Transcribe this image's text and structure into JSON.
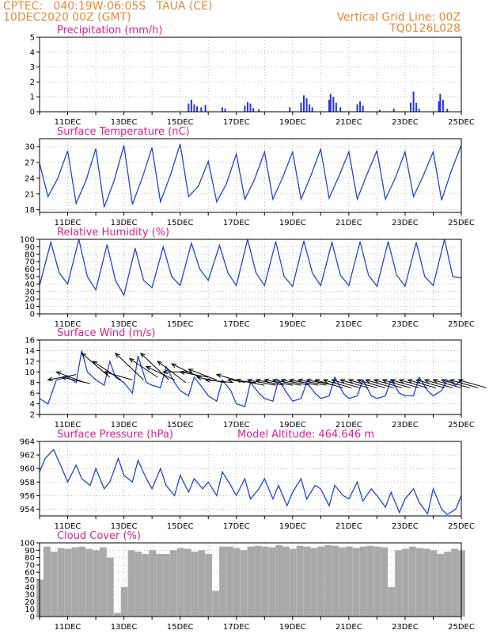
{
  "header": {
    "line1": "CPTEC:   040:19W-06:05S   TAUA (CE)",
    "line2": "10DEC2020 00Z (GMT)",
    "right1": "Vertical Grid Line: 00Z",
    "right2": "TQ0126L028"
  },
  "chart_data": [
    {
      "type": "bar",
      "title": "Precipitation (mm/h)",
      "ylim": [
        0,
        5
      ],
      "yticks": [
        "0",
        "1",
        "2",
        "3",
        "4",
        "5"
      ],
      "xtick_labels": [
        "11DEC",
        "13DEC",
        "15DEC",
        "17DEC",
        "19DEC",
        "21DEC",
        "23DEC",
        "25DEC"
      ],
      "bar_color": "#2233ee",
      "bars": [
        [
          5.3,
          0.55
        ],
        [
          5.4,
          0.8
        ],
        [
          5.5,
          0.5
        ],
        [
          5.6,
          0.35
        ],
        [
          5.75,
          0.3
        ],
        [
          5.9,
          0.45
        ],
        [
          6.5,
          0.3
        ],
        [
          6.6,
          0.2
        ],
        [
          7.3,
          0.4
        ],
        [
          7.4,
          0.65
        ],
        [
          7.5,
          0.55
        ],
        [
          7.6,
          0.25
        ],
        [
          7.8,
          0.15
        ],
        [
          8.9,
          0.3
        ],
        [
          9.3,
          0.6
        ],
        [
          9.4,
          1.1
        ],
        [
          9.5,
          0.9
        ],
        [
          9.6,
          0.5
        ],
        [
          9.7,
          0.3
        ],
        [
          10.3,
          0.8
        ],
        [
          10.35,
          1.2
        ],
        [
          10.45,
          1.0
        ],
        [
          10.55,
          0.6
        ],
        [
          10.7,
          0.3
        ],
        [
          11.3,
          0.5
        ],
        [
          11.4,
          0.7
        ],
        [
          11.5,
          0.4
        ],
        [
          12.1,
          0.12
        ],
        [
          12.6,
          0.2
        ],
        [
          13.2,
          0.6
        ],
        [
          13.3,
          1.35
        ],
        [
          13.4,
          0.6
        ],
        [
          13.5,
          0.2
        ],
        [
          14.2,
          0.7
        ],
        [
          14.25,
          1.2
        ],
        [
          14.35,
          0.8
        ],
        [
          14.5,
          0.2
        ]
      ]
    },
    {
      "type": "line",
      "title": "Surface Temperature (nC)",
      "ylim": [
        17.5,
        31.5
      ],
      "yticks": [
        "18",
        "21",
        "24",
        "27",
        "30"
      ],
      "ytick_values": [
        18,
        21,
        24,
        27,
        30
      ],
      "xtick_labels": [
        "11DEC",
        "13DEC",
        "15DEC",
        "17DEC",
        "19DEC",
        "21DEC",
        "23DEC",
        "25DEC"
      ],
      "line_color": "#2244dd",
      "x": [
        0,
        0.3,
        0.65,
        1.0,
        1.3,
        1.65,
        2.0,
        2.3,
        2.65,
        3.0,
        3.3,
        3.65,
        4.0,
        4.3,
        4.65,
        5.0,
        5.3,
        5.65,
        6.0,
        6.3,
        6.65,
        7.0,
        7.3,
        7.65,
        8.0,
        8.3,
        8.65,
        9.0,
        9.3,
        9.65,
        10.0,
        10.3,
        10.65,
        11.0,
        11.3,
        11.65,
        12.0,
        12.3,
        12.65,
        13.0,
        13.3,
        13.65,
        14.0,
        14.3,
        14.65,
        15.0
      ],
      "y": [
        26.8,
        20.5,
        24,
        29.2,
        19.2,
        23.5,
        29.6,
        18.5,
        23.5,
        30.2,
        19,
        24,
        29.8,
        19.5,
        24.5,
        30.5,
        20.5,
        22.5,
        27.2,
        19.5,
        23,
        28.6,
        20,
        23.8,
        29,
        20,
        24.2,
        29,
        20,
        24.5,
        29.5,
        20.2,
        24.4,
        29,
        20,
        24.8,
        29.2,
        20,
        24,
        29,
        20.5,
        24.5,
        29,
        19.8,
        25.5,
        30.3
      ]
    },
    {
      "type": "line",
      "title": "Relative Humidity (%)",
      "ylim": [
        0,
        100
      ],
      "yticks": [
        "0",
        "10",
        "20",
        "30",
        "40",
        "50",
        "60",
        "70",
        "80",
        "90",
        "100"
      ],
      "ytick_values": [
        0,
        10,
        20,
        30,
        40,
        50,
        60,
        70,
        80,
        90,
        100
      ],
      "xtick_labels": [
        "11DEC",
        "13DEC",
        "15DEC",
        "17DEC",
        "19DEC",
        "21DEC",
        "23DEC",
        "25DEC"
      ],
      "line_color": "#2244dd",
      "x": [
        0,
        0.4,
        0.7,
        1.0,
        1.4,
        1.7,
        2.0,
        2.4,
        2.7,
        3.0,
        3.4,
        3.7,
        4.0,
        4.4,
        4.7,
        5.0,
        5.4,
        5.7,
        6.0,
        6.4,
        6.7,
        7.0,
        7.4,
        7.7,
        8.0,
        8.4,
        8.7,
        9.0,
        9.4,
        9.7,
        10.0,
        10.4,
        10.7,
        11.0,
        11.4,
        11.7,
        12.0,
        12.4,
        12.7,
        13.0,
        13.4,
        13.7,
        14.0,
        14.4,
        14.7,
        15.0
      ],
      "y": [
        38,
        96,
        55,
        40,
        100,
        50,
        32,
        93,
        45,
        25,
        88,
        45,
        35,
        90,
        50,
        38,
        95,
        60,
        45,
        92,
        55,
        38,
        100,
        55,
        38,
        97,
        50,
        37,
        98,
        55,
        38,
        96,
        52,
        38,
        97,
        52,
        37,
        97,
        52,
        37,
        96,
        50,
        38,
        100,
        50,
        48
      ]
    },
    {
      "type": "line",
      "title": "Surface Wind (m/s)",
      "ylim": [
        2,
        16
      ],
      "yticks": [
        "2",
        "4",
        "6",
        "8",
        "10",
        "12",
        "14",
        "16"
      ],
      "ytick_values": [
        2,
        4,
        6,
        8,
        10,
        12,
        14,
        16
      ],
      "xtick_labels": [
        "11DEC",
        "13DEC",
        "15DEC",
        "17DEC",
        "19DEC",
        "21DEC",
        "23DEC",
        "25DEC"
      ],
      "line_color": "#2244dd",
      "x": [
        0,
        0.3,
        0.6,
        1.0,
        1.3,
        1.5,
        1.7,
        2.0,
        2.3,
        2.5,
        2.7,
        3.0,
        3.3,
        3.5,
        3.8,
        4.0,
        4.3,
        4.5,
        4.8,
        5.0,
        5.3,
        5.5,
        5.8,
        6.0,
        6.3,
        6.5,
        6.8,
        7.0,
        7.3,
        7.5,
        7.8,
        8.0,
        8.3,
        8.5,
        8.8,
        9.0,
        9.3,
        9.5,
        9.8,
        10.0,
        10.3,
        10.5,
        10.8,
        11.0,
        11.3,
        11.5,
        11.8,
        12.0,
        12.3,
        12.5,
        12.8,
        13.0,
        13.3,
        13.5,
        13.8,
        14.0,
        14.3,
        14.5,
        14.8,
        15.0
      ],
      "y": [
        5,
        4,
        8.5,
        9,
        8,
        14,
        10,
        8.5,
        7.5,
        12,
        9,
        8,
        6,
        13,
        8,
        7.5,
        7,
        11,
        8,
        6.5,
        5.5,
        9,
        7,
        5.5,
        4.5,
        8.5,
        6.5,
        4,
        3.5,
        8,
        6,
        5,
        4.5,
        8.5,
        6,
        4.5,
        5,
        8,
        6,
        5,
        5.5,
        9,
        6,
        5,
        5.5,
        8.5,
        5.5,
        5,
        5.5,
        8.5,
        6,
        5.5,
        5.5,
        9,
        6.5,
        5.5,
        6.5,
        8.5,
        7.5,
        8.5
      ],
      "arrow_color": "#000000",
      "vectors": [
        [
          0.3,
          8.5,
          9.5
        ],
        [
          0.6,
          10,
          8.0
        ],
        [
          0.8,
          9,
          7.8
        ],
        [
          1.5,
          13.5,
          9.0
        ],
        [
          1.9,
          12,
          8.5
        ],
        [
          2.3,
          10,
          8.5
        ],
        [
          2.7,
          13.5,
          8.5
        ],
        [
          3.2,
          12.5,
          9.0
        ],
        [
          3.6,
          13.5,
          8.5
        ],
        [
          3.8,
          11,
          8.5
        ],
        [
          4.2,
          12,
          8.0
        ],
        [
          4.4,
          10,
          10.0
        ],
        [
          4.7,
          11.5,
          9.0
        ],
        [
          5.0,
          10,
          9.0
        ],
        [
          5.3,
          10.5,
          8.5
        ],
        [
          5.6,
          9,
          8.0
        ],
        [
          5.9,
          8.5,
          8.0
        ],
        [
          6.3,
          9.5,
          8.0
        ],
        [
          6.7,
          8.5,
          8.0
        ],
        [
          7.0,
          8.5,
          7.5
        ],
        [
          7.4,
          8.5,
          7.5
        ],
        [
          7.7,
          8.5,
          7.5
        ],
        [
          8.0,
          8.5,
          7.5
        ],
        [
          8.3,
          8.5,
          7.5
        ],
        [
          8.6,
          8.5,
          7.5
        ],
        [
          8.9,
          8.5,
          7.5
        ],
        [
          9.2,
          8.5,
          7.5
        ],
        [
          9.5,
          8.5,
          7.5
        ],
        [
          9.8,
          8.5,
          7.0
        ],
        [
          10.1,
          8.5,
          7.0
        ],
        [
          10.4,
          8.5,
          7.0
        ],
        [
          10.7,
          8.5,
          7.0
        ],
        [
          11.0,
          8.5,
          7.0
        ],
        [
          11.3,
          8.5,
          7.0
        ],
        [
          11.6,
          8.5,
          7.0
        ],
        [
          11.9,
          8.5,
          7.0
        ],
        [
          12.2,
          8.5,
          7.0
        ],
        [
          12.5,
          8.5,
          7.0
        ],
        [
          12.8,
          8.5,
          7.0
        ],
        [
          13.1,
          8.5,
          7.0
        ],
        [
          13.4,
          8.5,
          7.0
        ],
        [
          13.7,
          8.5,
          7.0
        ],
        [
          14.0,
          8.5,
          7.0
        ],
        [
          14.3,
          8.5,
          7.0
        ],
        [
          14.6,
          8.5,
          7.0
        ],
        [
          14.9,
          8.5,
          7.0
        ]
      ]
    },
    {
      "type": "line",
      "title": "Surface Pressure (hPa)",
      "annotation": "Model Altitude: 464.646 m",
      "ylim": [
        953,
        964
      ],
      "yticks": [
        "954",
        "956",
        "958",
        "960",
        "962",
        "964"
      ],
      "ytick_values": [
        954,
        956,
        958,
        960,
        962,
        964
      ],
      "xtick_labels": [
        "11DEC",
        "13DEC",
        "15DEC",
        "17DEC",
        "19DEC",
        "21DEC",
        "23DEC",
        "25DEC"
      ],
      "line_color": "#2244dd",
      "x": [
        0,
        0.2,
        0.5,
        0.8,
        1.0,
        1.3,
        1.5,
        1.8,
        2.0,
        2.3,
        2.5,
        2.8,
        3.0,
        3.3,
        3.5,
        3.8,
        4.0,
        4.3,
        4.5,
        4.8,
        5.0,
        5.3,
        5.5,
        5.8,
        6.0,
        6.3,
        6.5,
        6.8,
        7.0,
        7.3,
        7.5,
        7.8,
        8.0,
        8.3,
        8.5,
        8.8,
        9.0,
        9.3,
        9.5,
        9.8,
        10.0,
        10.3,
        10.5,
        10.8,
        11.0,
        11.3,
        11.5,
        11.8,
        12.0,
        12.3,
        12.5,
        12.8,
        13.0,
        13.3,
        13.5,
        13.8,
        14.0,
        14.3,
        14.5,
        14.8,
        15.0
      ],
      "y": [
        959.5,
        961.5,
        962.8,
        960,
        958,
        960.5,
        958.5,
        957.5,
        960,
        957,
        958,
        961.5,
        959,
        958,
        961.2,
        958.5,
        957,
        960,
        957.5,
        956,
        959,
        956.5,
        958.5,
        957,
        958,
        956,
        959.5,
        957.5,
        956,
        958.5,
        955.5,
        957,
        958.5,
        955.5,
        957.5,
        954.5,
        956.5,
        958.5,
        955.5,
        957.5,
        957,
        954.5,
        957.5,
        956,
        955.5,
        958,
        955.2,
        957,
        956,
        954.3,
        956.5,
        953.5,
        955.5,
        957,
        955,
        953.3,
        957,
        954,
        953.2,
        954,
        956
      ]
    },
    {
      "type": "bar",
      "title": "Cloud Cover (%)",
      "ylim": [
        0,
        100
      ],
      "yticks": [
        "0",
        "10",
        "20",
        "30",
        "40",
        "50",
        "60",
        "70",
        "80",
        "90",
        "100"
      ],
      "xtick_labels": [
        "11DEC",
        "13DEC",
        "15DEC",
        "17DEC",
        "19DEC",
        "21DEC",
        "23DEC",
        "25DEC"
      ],
      "bar_color": "#a9a9a9",
      "x": [
        0,
        0.25,
        0.5,
        0.75,
        1.0,
        1.25,
        1.5,
        1.75,
        2.0,
        2.25,
        2.5,
        2.75,
        3.0,
        3.25,
        3.5,
        3.75,
        4.0,
        4.25,
        4.5,
        4.75,
        5.0,
        5.25,
        5.5,
        5.75,
        6.0,
        6.25,
        6.5,
        6.75,
        7.0,
        7.25,
        7.5,
        7.75,
        8.0,
        8.25,
        8.5,
        8.75,
        9.0,
        9.25,
        9.5,
        9.75,
        10.0,
        10.25,
        10.5,
        10.75,
        11.0,
        11.25,
        11.5,
        11.75,
        12.0,
        12.25,
        12.5,
        12.75,
        13.0,
        13.25,
        13.5,
        13.75,
        14.0,
        14.25,
        14.5,
        14.75,
        15.0
      ],
      "values": [
        50,
        95,
        88,
        93,
        92,
        94,
        95,
        92,
        90,
        94,
        80,
        5,
        40,
        90,
        88,
        85,
        90,
        85,
        85,
        90,
        93,
        92,
        88,
        90,
        85,
        35,
        95,
        95,
        93,
        90,
        95,
        96,
        95,
        94,
        97,
        95,
        92,
        96,
        95,
        93,
        95,
        97,
        96,
        94,
        95,
        93,
        95,
        96,
        95,
        94,
        40,
        90,
        92,
        95,
        93,
        92,
        90,
        85,
        88,
        92,
        90
      ]
    }
  ]
}
